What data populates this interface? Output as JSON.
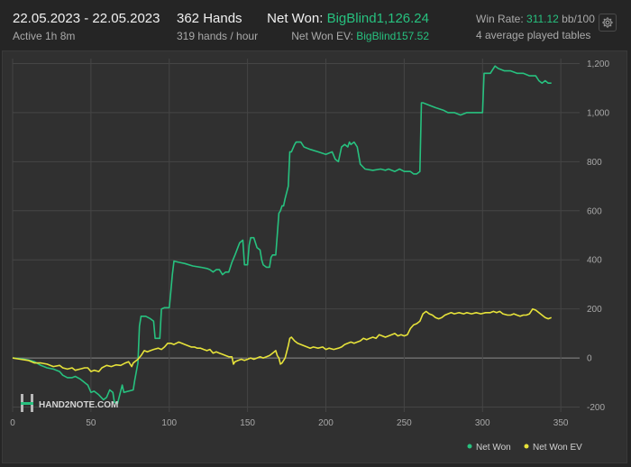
{
  "header": {
    "date_range": "22.05.2023 - 22.05.2023",
    "active": "Active 1h 8m",
    "hands": "362 Hands",
    "hands_per_hour": "319 hands / hour",
    "net_won_label": "Net Won: ",
    "net_won_value": "BigBlind1,126.24",
    "net_won_ev_label": "Net Won  EV: ",
    "net_won_ev_value": "BigBlind157.52",
    "win_rate_label": "Win Rate: ",
    "win_rate_value": "311.12",
    "win_rate_unit": " bb/100",
    "tables": "4 average played tables"
  },
  "logo": {
    "text": "HAND2NOTE.COM"
  },
  "colors": {
    "net_won": "#27c17f",
    "net_won_ev": "#e6e23a",
    "background": "#303030",
    "grid": "#454545"
  },
  "icons": {
    "settings": "gear-icon"
  },
  "chart_data": {
    "type": "line",
    "xlabel": "",
    "ylabel": "",
    "xlim": [
      0,
      362
    ],
    "ylim": [
      -220,
      1220
    ],
    "x_ticks": [
      "0",
      "50",
      "100",
      "150",
      "200",
      "250",
      "300",
      "350"
    ],
    "y_ticks": [
      "-200",
      "0",
      "200",
      "400",
      "600",
      "800",
      "1,000",
      "1,200"
    ],
    "y_tick_values": [
      -200,
      0,
      200,
      400,
      600,
      800,
      1000,
      1200
    ],
    "grid": true,
    "legend_position": "bottom-right",
    "series": [
      {
        "name": "Net Won",
        "color": "#27c17f",
        "points": [
          [
            0,
            0
          ],
          [
            5,
            -3
          ],
          [
            10,
            -8
          ],
          [
            14,
            -15
          ],
          [
            18,
            -30
          ],
          [
            22,
            -40
          ],
          [
            26,
            -45
          ],
          [
            30,
            -55
          ],
          [
            32,
            -70
          ],
          [
            35,
            -80
          ],
          [
            38,
            -80
          ],
          [
            40,
            -75
          ],
          [
            43,
            -85
          ],
          [
            45,
            -95
          ],
          [
            48,
            -110
          ],
          [
            50,
            -140
          ],
          [
            52,
            -135
          ],
          [
            55,
            -150
          ],
          [
            58,
            -170
          ],
          [
            60,
            -160
          ],
          [
            62,
            -130
          ],
          [
            64,
            -140
          ],
          [
            65,
            -180
          ],
          [
            67,
            -185
          ],
          [
            70,
            -110
          ],
          [
            71,
            -140
          ],
          [
            74,
            -135
          ],
          [
            77,
            -130
          ],
          [
            78,
            -90
          ],
          [
            80,
            -20
          ],
          [
            81,
            130
          ],
          [
            82,
            170
          ],
          [
            85,
            170
          ],
          [
            88,
            160
          ],
          [
            90,
            150
          ],
          [
            91,
            80
          ],
          [
            94,
            80
          ],
          [
            95,
            200
          ],
          [
            97,
            205
          ],
          [
            100,
            205
          ],
          [
            101,
            270
          ],
          [
            102,
            340
          ],
          [
            103,
            395
          ],
          [
            106,
            390
          ],
          [
            110,
            385
          ],
          [
            115,
            375
          ],
          [
            120,
            370
          ],
          [
            124,
            365
          ],
          [
            126,
            360
          ],
          [
            128,
            350
          ],
          [
            130,
            360
          ],
          [
            132,
            360
          ],
          [
            134,
            340
          ],
          [
            136,
            350
          ],
          [
            138,
            350
          ],
          [
            140,
            390
          ],
          [
            142,
            420
          ],
          [
            145,
            470
          ],
          [
            147,
            480
          ],
          [
            148,
            380
          ],
          [
            150,
            380
          ],
          [
            151,
            460
          ],
          [
            152,
            490
          ],
          [
            154,
            490
          ],
          [
            156,
            450
          ],
          [
            158,
            440
          ],
          [
            159,
            400
          ],
          [
            160,
            380
          ],
          [
            162,
            370
          ],
          [
            164,
            370
          ],
          [
            165,
            410
          ],
          [
            166,
            420
          ],
          [
            168,
            420
          ],
          [
            170,
            590
          ],
          [
            171,
            600
          ],
          [
            172,
            620
          ],
          [
            173,
            620
          ],
          [
            174,
            650
          ],
          [
            176,
            700
          ],
          [
            177,
            840
          ],
          [
            178,
            840
          ],
          [
            180,
            870
          ],
          [
            181,
            880
          ],
          [
            184,
            880
          ],
          [
            186,
            860
          ],
          [
            190,
            850
          ],
          [
            195,
            840
          ],
          [
            200,
            830
          ],
          [
            204,
            840
          ],
          [
            206,
            810
          ],
          [
            208,
            800
          ],
          [
            210,
            860
          ],
          [
            212,
            870
          ],
          [
            214,
            860
          ],
          [
            215,
            880
          ],
          [
            216,
            870
          ],
          [
            218,
            880
          ],
          [
            220,
            860
          ],
          [
            222,
            790
          ],
          [
            225,
            770
          ],
          [
            230,
            765
          ],
          [
            235,
            770
          ],
          [
            238,
            765
          ],
          [
            240,
            770
          ],
          [
            244,
            760
          ],
          [
            247,
            770
          ],
          [
            250,
            760
          ],
          [
            254,
            760
          ],
          [
            256,
            750
          ],
          [
            258,
            750
          ],
          [
            260,
            760
          ],
          [
            261,
            1040
          ],
          [
            262,
            1040
          ],
          [
            266,
            1030
          ],
          [
            270,
            1020
          ],
          [
            275,
            1010
          ],
          [
            278,
            1000
          ],
          [
            282,
            1000
          ],
          [
            286,
            990
          ],
          [
            290,
            1000
          ],
          [
            294,
            1000
          ],
          [
            298,
            1000
          ],
          [
            300,
            1000
          ],
          [
            301,
            1160
          ],
          [
            303,
            1160
          ],
          [
            305,
            1160
          ],
          [
            306,
            1170
          ],
          [
            308,
            1190
          ],
          [
            310,
            1180
          ],
          [
            314,
            1170
          ],
          [
            318,
            1170
          ],
          [
            322,
            1160
          ],
          [
            326,
            1160
          ],
          [
            330,
            1150
          ],
          [
            334,
            1150
          ],
          [
            336,
            1130
          ],
          [
            338,
            1120
          ],
          [
            340,
            1130
          ],
          [
            342,
            1120
          ],
          [
            344,
            1120
          ]
        ]
      },
      {
        "name": "Net Won  EV",
        "color": "#e6e23a",
        "points": [
          [
            0,
            0
          ],
          [
            5,
            -5
          ],
          [
            10,
            -10
          ],
          [
            14,
            -20
          ],
          [
            18,
            -20
          ],
          [
            22,
            -25
          ],
          [
            26,
            -35
          ],
          [
            30,
            -30
          ],
          [
            32,
            -40
          ],
          [
            35,
            -45
          ],
          [
            38,
            -40
          ],
          [
            40,
            -50
          ],
          [
            43,
            -45
          ],
          [
            46,
            -40
          ],
          [
            48,
            -40
          ],
          [
            50,
            -55
          ],
          [
            52,
            -50
          ],
          [
            55,
            -55
          ],
          [
            57,
            -40
          ],
          [
            60,
            -30
          ],
          [
            63,
            -35
          ],
          [
            66,
            -28
          ],
          [
            69,
            -30
          ],
          [
            72,
            -20
          ],
          [
            74,
            -15
          ],
          [
            76,
            -35
          ],
          [
            77,
            -20
          ],
          [
            78,
            -15
          ],
          [
            80,
            -5
          ],
          [
            82,
            10
          ],
          [
            84,
            30
          ],
          [
            86,
            25
          ],
          [
            88,
            30
          ],
          [
            90,
            35
          ],
          [
            93,
            40
          ],
          [
            95,
            35
          ],
          [
            97,
            45
          ],
          [
            99,
            60
          ],
          [
            101,
            60
          ],
          [
            103,
            55
          ],
          [
            106,
            65
          ],
          [
            108,
            60
          ],
          [
            110,
            55
          ],
          [
            112,
            50
          ],
          [
            114,
            45
          ],
          [
            116,
            45
          ],
          [
            118,
            40
          ],
          [
            120,
            40
          ],
          [
            122,
            35
          ],
          [
            124,
            30
          ],
          [
            126,
            35
          ],
          [
            128,
            20
          ],
          [
            130,
            25
          ],
          [
            132,
            20
          ],
          [
            134,
            15
          ],
          [
            136,
            10
          ],
          [
            138,
            5
          ],
          [
            140,
            5
          ],
          [
            141,
            -25
          ],
          [
            142,
            -15
          ],
          [
            144,
            -10
          ],
          [
            146,
            -5
          ],
          [
            148,
            -10
          ],
          [
            150,
            -5
          ],
          [
            152,
            0
          ],
          [
            154,
            -5
          ],
          [
            156,
            0
          ],
          [
            158,
            5
          ],
          [
            160,
            0
          ],
          [
            162,
            5
          ],
          [
            164,
            10
          ],
          [
            166,
            20
          ],
          [
            168,
            30
          ],
          [
            169,
            10
          ],
          [
            170,
            0
          ],
          [
            171,
            -25
          ],
          [
            172,
            -20
          ],
          [
            173,
            -10
          ],
          [
            174,
            0
          ],
          [
            176,
            50
          ],
          [
            177,
            80
          ],
          [
            178,
            85
          ],
          [
            180,
            70
          ],
          [
            182,
            60
          ],
          [
            184,
            55
          ],
          [
            186,
            50
          ],
          [
            188,
            45
          ],
          [
            190,
            40
          ],
          [
            192,
            45
          ],
          [
            195,
            40
          ],
          [
            198,
            45
          ],
          [
            200,
            35
          ],
          [
            202,
            40
          ],
          [
            205,
            35
          ],
          [
            208,
            40
          ],
          [
            210,
            45
          ],
          [
            212,
            55
          ],
          [
            214,
            60
          ],
          [
            216,
            65
          ],
          [
            218,
            60
          ],
          [
            220,
            65
          ],
          [
            222,
            70
          ],
          [
            224,
            80
          ],
          [
            226,
            75
          ],
          [
            228,
            80
          ],
          [
            230,
            85
          ],
          [
            232,
            80
          ],
          [
            234,
            95
          ],
          [
            236,
            90
          ],
          [
            238,
            85
          ],
          [
            240,
            90
          ],
          [
            242,
            95
          ],
          [
            244,
            100
          ],
          [
            246,
            90
          ],
          [
            248,
            95
          ],
          [
            250,
            90
          ],
          [
            252,
            95
          ],
          [
            254,
            120
          ],
          [
            256,
            135
          ],
          [
            258,
            140
          ],
          [
            260,
            150
          ],
          [
            262,
            180
          ],
          [
            264,
            190
          ],
          [
            266,
            180
          ],
          [
            268,
            175
          ],
          [
            270,
            165
          ],
          [
            272,
            160
          ],
          [
            274,
            165
          ],
          [
            276,
            175
          ],
          [
            278,
            180
          ],
          [
            280,
            185
          ],
          [
            282,
            180
          ],
          [
            285,
            185
          ],
          [
            288,
            180
          ],
          [
            290,
            185
          ],
          [
            293,
            180
          ],
          [
            296,
            185
          ],
          [
            299,
            180
          ],
          [
            302,
            185
          ],
          [
            305,
            185
          ],
          [
            307,
            190
          ],
          [
            309,
            185
          ],
          [
            311,
            190
          ],
          [
            313,
            180
          ],
          [
            316,
            175
          ],
          [
            318,
            175
          ],
          [
            320,
            180
          ],
          [
            322,
            175
          ],
          [
            324,
            170
          ],
          [
            326,
            175
          ],
          [
            328,
            175
          ],
          [
            330,
            180
          ],
          [
            332,
            200
          ],
          [
            334,
            195
          ],
          [
            336,
            185
          ],
          [
            338,
            175
          ],
          [
            340,
            165
          ],
          [
            342,
            160
          ],
          [
            344,
            165
          ]
        ]
      }
    ]
  }
}
